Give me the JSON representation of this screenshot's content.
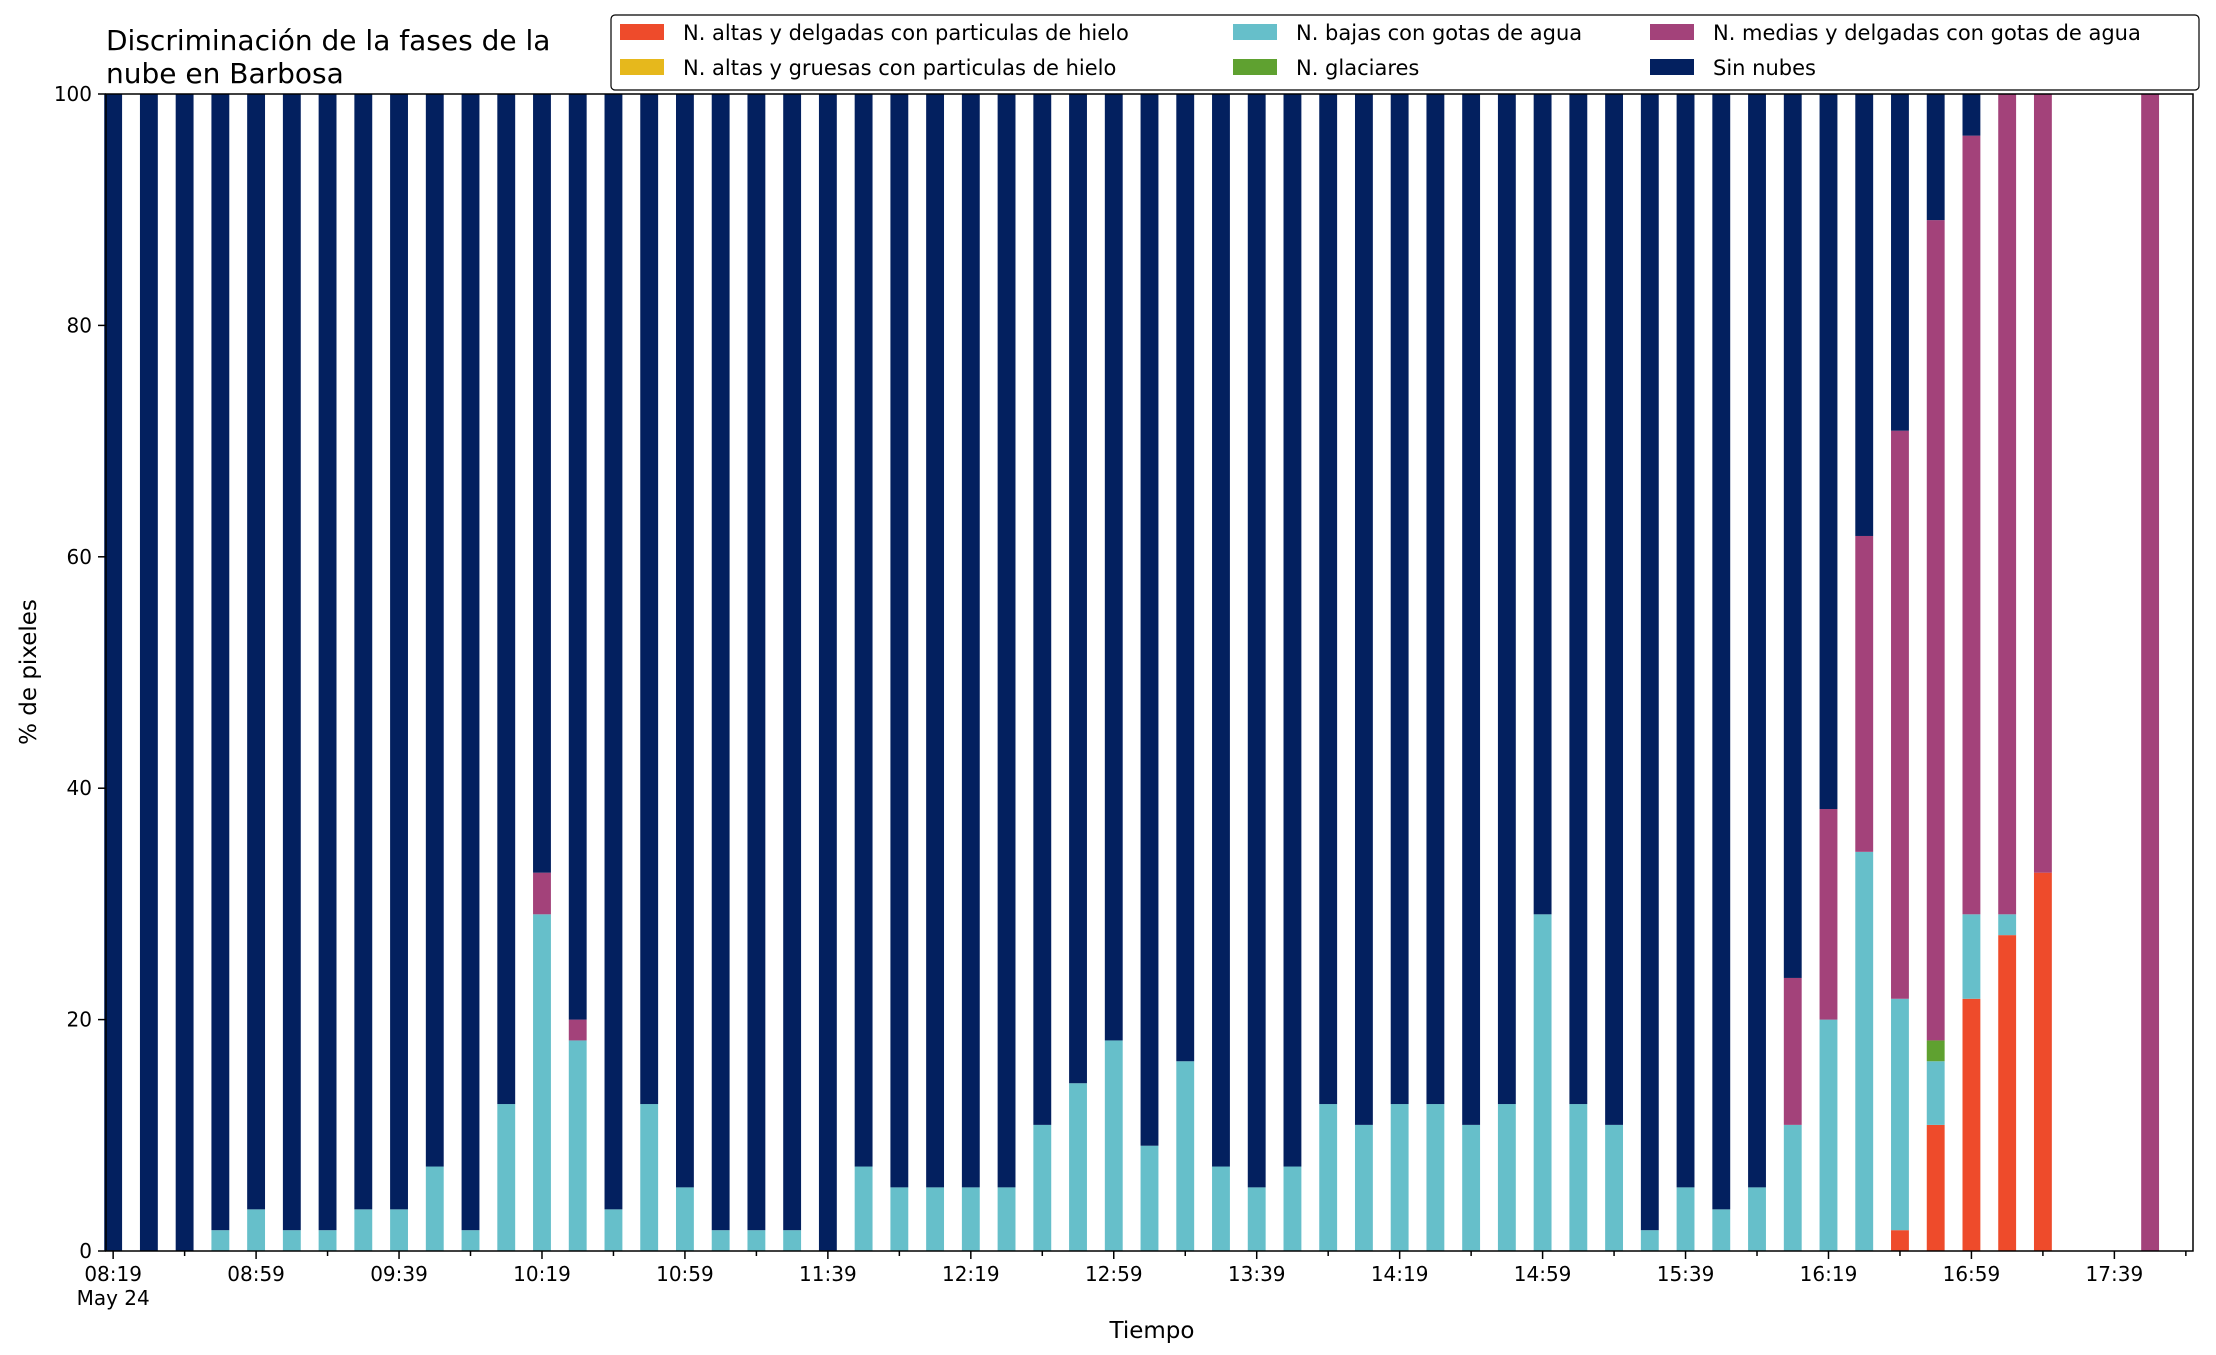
{
  "chart_data": {
    "type": "bar",
    "stacked": true,
    "title_lines": [
      "Discriminación de la fases de la",
      "nube en Barbosa"
    ],
    "xlabel": "Tiempo",
    "ylabel": "% de pixeles",
    "ylim": [
      0,
      100
    ],
    "y_ticks": [
      0,
      20,
      40,
      60,
      80,
      100
    ],
    "grid": false,
    "legend_position": "top-right",
    "x_start": "08:19",
    "x_end": "17:59",
    "x_step_minutes": 10,
    "x_ticks": [
      "08:19",
      "08:59",
      "09:39",
      "10:19",
      "10:59",
      "11:39",
      "12:19",
      "12:59",
      "13:39",
      "14:19",
      "14:59",
      "15:39",
      "16:19",
      "16:59",
      "17:39"
    ],
    "x_first_tick_sublabel": "May 24",
    "categories": [
      "08:19",
      "08:29",
      "08:39",
      "08:49",
      "08:59",
      "09:09",
      "09:19",
      "09:29",
      "09:39",
      "09:49",
      "09:59",
      "10:09",
      "10:19",
      "10:29",
      "10:39",
      "10:49",
      "10:59",
      "11:09",
      "11:19",
      "11:29",
      "11:39",
      "11:49",
      "11:59",
      "12:09",
      "12:19",
      "12:29",
      "12:39",
      "12:49",
      "12:59",
      "13:09",
      "13:19",
      "13:29",
      "13:39",
      "13:49",
      "13:59",
      "14:09",
      "14:19",
      "14:29",
      "14:39",
      "14:49",
      "14:59",
      "15:09",
      "15:19",
      "15:29",
      "15:39",
      "15:49",
      "15:59",
      "16:09",
      "16:19",
      "16:29",
      "16:39",
      "16:49",
      "16:59",
      "17:09",
      "17:19",
      "17:29",
      "17:39",
      "17:49",
      "17:59"
    ],
    "series": [
      {
        "name": "N. altas y delgadas con particulas de hielo",
        "color": "#ee4b2b",
        "values": [
          0,
          0,
          0,
          0,
          0,
          0,
          0,
          0,
          0,
          0,
          0,
          0,
          0,
          0,
          0,
          0,
          0,
          0,
          0,
          0,
          0,
          0,
          0,
          0,
          0,
          0,
          0,
          0,
          0,
          0,
          0,
          0,
          0,
          0,
          0,
          0,
          0,
          0,
          0,
          0,
          0,
          0,
          0,
          0,
          0,
          0,
          0,
          0,
          0,
          0,
          1.8,
          10.9,
          21.8,
          27.3,
          32.7,
          0,
          0,
          0,
          0
        ]
      },
      {
        "name": "N. altas y gruesas con particulas de hielo",
        "color": "#e6b81c",
        "values": [
          0,
          0,
          0,
          0,
          0,
          0,
          0,
          0,
          0,
          0,
          0,
          0,
          0,
          0,
          0,
          0,
          0,
          0,
          0,
          0,
          0,
          0,
          0,
          0,
          0,
          0,
          0,
          0,
          0,
          0,
          0,
          0,
          0,
          0,
          0,
          0,
          0,
          0,
          0,
          0,
          0,
          0,
          0,
          0,
          0,
          0,
          0,
          0,
          0,
          0,
          0,
          0,
          0,
          0,
          0,
          0,
          0,
          0,
          0
        ]
      },
      {
        "name": "N. bajas con gotas de agua",
        "color": "#66bfca",
        "values": [
          0,
          0,
          0,
          1.8,
          3.6,
          1.8,
          1.8,
          3.6,
          3.6,
          7.3,
          1.8,
          12.7,
          29.1,
          18.2,
          3.6,
          12.7,
          5.5,
          1.8,
          1.8,
          1.8,
          0,
          7.3,
          5.5,
          5.5,
          5.5,
          5.5,
          10.9,
          14.5,
          18.2,
          9.1,
          16.4,
          7.3,
          5.5,
          7.3,
          12.7,
          10.9,
          12.7,
          12.7,
          10.9,
          12.7,
          29.1,
          12.7,
          10.9,
          1.8,
          5.5,
          3.6,
          5.5,
          10.9,
          20.0,
          34.5,
          20.0,
          5.5,
          7.3,
          1.8,
          0,
          0,
          0,
          0,
          0
        ]
      },
      {
        "name": "N. glaciares",
        "color": "#5fa130",
        "values": [
          0,
          0,
          0,
          0,
          0,
          0,
          0,
          0,
          0,
          0,
          0,
          0,
          0,
          0,
          0,
          0,
          0,
          0,
          0,
          0,
          0,
          0,
          0,
          0,
          0,
          0,
          0,
          0,
          0,
          0,
          0,
          0,
          0,
          0,
          0,
          0,
          0,
          0,
          0,
          0,
          0,
          0,
          0,
          0,
          0,
          0,
          0,
          0,
          0,
          0,
          0,
          1.8,
          0,
          0,
          0,
          0,
          0,
          0,
          0
        ]
      },
      {
        "name": "N. medias y delgadas con gotas de agua",
        "color": "#a3427a",
        "values": [
          0,
          0,
          0,
          0,
          0,
          0,
          0,
          0,
          0,
          0,
          0,
          0,
          3.6,
          1.8,
          0,
          0,
          0,
          0,
          0,
          0,
          0,
          0,
          0,
          0,
          0,
          0,
          0,
          0,
          0,
          0,
          0,
          0,
          0,
          0,
          0,
          0,
          0,
          0,
          0,
          0,
          0,
          0,
          0,
          0,
          0,
          0,
          0,
          12.7,
          18.2,
          27.3,
          49.1,
          70.9,
          67.3,
          70.9,
          67.3,
          0,
          0,
          100,
          0
        ]
      },
      {
        "name": "Sin nubes",
        "color": "#03205f",
        "values": [
          100,
          100,
          100,
          98.2,
          96.4,
          98.2,
          98.2,
          96.4,
          96.4,
          92.7,
          98.2,
          87.3,
          67.3,
          80.0,
          96.4,
          87.3,
          94.5,
          98.2,
          98.2,
          98.2,
          100,
          92.7,
          94.5,
          94.5,
          94.5,
          94.5,
          89.1,
          85.5,
          81.8,
          90.9,
          83.6,
          92.7,
          94.5,
          92.7,
          87.3,
          89.1,
          87.3,
          87.3,
          89.1,
          87.3,
          70.9,
          87.3,
          89.1,
          98.2,
          94.5,
          96.4,
          94.5,
          76.4,
          61.8,
          38.2,
          29.1,
          10.9,
          3.6,
          0,
          0,
          0,
          0,
          0,
          0
        ]
      }
    ]
  }
}
